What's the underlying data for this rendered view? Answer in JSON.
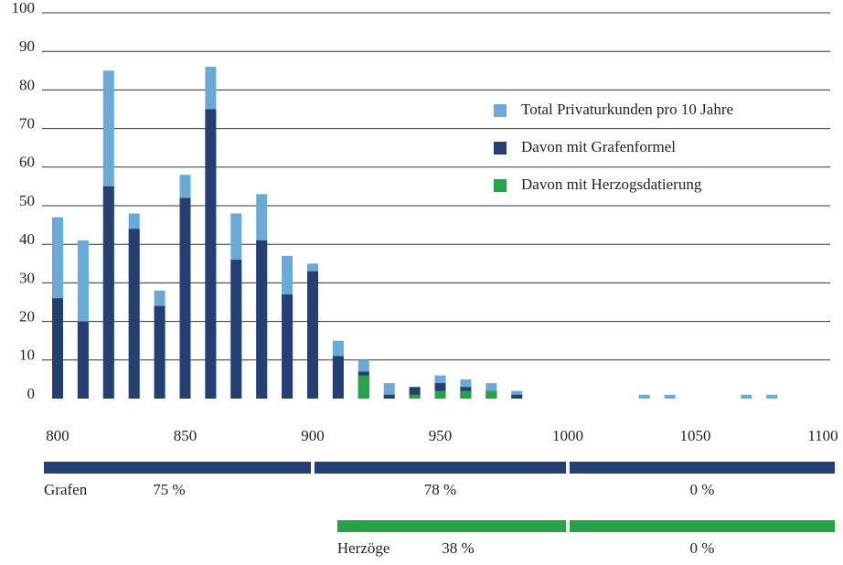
{
  "chart_data": {
    "type": "bar",
    "x": [
      800,
      810,
      820,
      830,
      840,
      850,
      860,
      870,
      880,
      890,
      900,
      910,
      920,
      930,
      940,
      950,
      960,
      970,
      980,
      990,
      1000,
      1010,
      1020,
      1030,
      1040,
      1050,
      1060,
      1070,
      1080
    ],
    "series": [
      {
        "name": "Total Privaturkunden pro 10 Jahre",
        "color": "#6aaad8",
        "values": [
          47,
          41,
          85,
          48,
          28,
          58,
          86,
          48,
          53,
          37,
          35,
          15,
          10,
          4,
          3,
          6,
          5,
          4,
          2,
          0,
          0,
          0,
          0,
          1,
          1,
          0,
          0,
          1,
          1
        ]
      },
      {
        "name": "Davon mit Grafenformel",
        "color": "#253f73",
        "values": [
          26,
          20,
          55,
          44,
          24,
          52,
          75,
          36,
          41,
          27,
          33,
          11,
          7,
          1,
          3,
          4,
          3,
          2,
          1,
          0,
          0,
          0,
          0,
          0,
          0,
          0,
          0,
          0,
          0
        ]
      },
      {
        "name": "Davon mit Herzogsdatierung",
        "color": "#27a24a",
        "values": [
          0,
          0,
          0,
          0,
          0,
          0,
          0,
          0,
          0,
          0,
          0,
          0,
          6,
          0,
          1,
          2,
          2,
          2,
          0,
          0,
          0,
          0,
          0,
          0,
          0,
          0,
          0,
          0,
          0
        ]
      }
    ],
    "xlim": [
      800,
      1100
    ],
    "xticks": [
      800,
      850,
      900,
      950,
      1000,
      1050,
      1100
    ],
    "ylim": [
      0,
      100
    ],
    "yticks": [
      0,
      10,
      20,
      30,
      40,
      50,
      60,
      70,
      80,
      90,
      100
    ],
    "grid": true,
    "legend": "upper right",
    "summary": [
      {
        "name": "Grafen",
        "color": "#253f73",
        "segments": [
          {
            "start": 800,
            "end": 900,
            "value": 75,
            "label": "75 %"
          },
          {
            "start": 900,
            "end": 1000,
            "value": 78,
            "label": "78 %"
          },
          {
            "start": 1000,
            "end": 1100,
            "value": 0,
            "label": "0 %"
          }
        ]
      },
      {
        "name": "Herzöge",
        "color": "#27a24a",
        "segments": [
          {
            "start": 915,
            "end": 1000,
            "value": 38,
            "label": "38 %"
          },
          {
            "start": 1000,
            "end": 1100,
            "value": 0,
            "label": "0 %"
          }
        ]
      }
    ]
  }
}
